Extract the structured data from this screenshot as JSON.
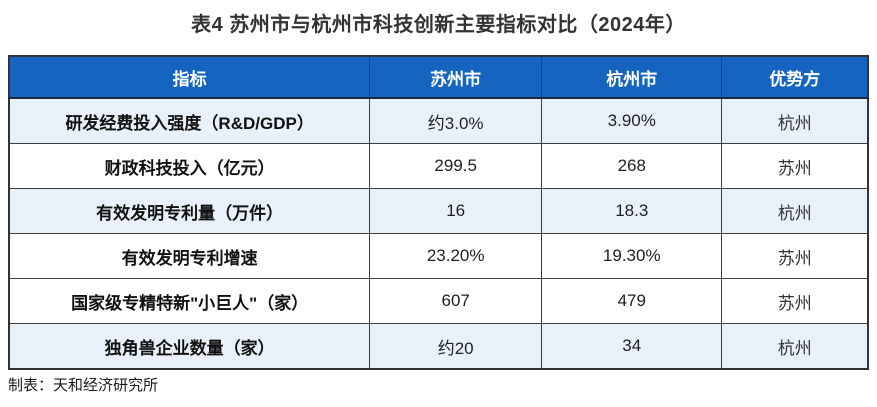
{
  "title": "表4  苏州市与杭州市科技创新主要指标对比（2024年）",
  "table": {
    "columns": [
      "指标",
      "苏州市",
      "杭州市",
      "优势方"
    ],
    "rows": [
      {
        "indicator": "研发经费投入强度（R&D/GDP）",
        "suzhou": "约3.0%",
        "hangzhou": "3.90%",
        "advantage": "杭州"
      },
      {
        "indicator": "财政科技投入（亿元）",
        "suzhou": "299.5",
        "hangzhou": "268",
        "advantage": "苏州"
      },
      {
        "indicator": "有效发明专利量（万件）",
        "suzhou": "16",
        "hangzhou": "18.3",
        "advantage": "杭州"
      },
      {
        "indicator": "有效发明专利增速",
        "suzhou": "23.20%",
        "hangzhou": "19.30%",
        "advantage": "苏州"
      },
      {
        "indicator": "国家级专精特新\"小巨人\"（家）",
        "suzhou": "607",
        "hangzhou": "479",
        "advantage": "苏州"
      },
      {
        "indicator": "独角兽企业数量（家）",
        "suzhou": "约20",
        "hangzhou": "34",
        "advantage": "杭州"
      }
    ]
  },
  "footer": "制表：天和经济研究所",
  "colors": {
    "header_bg": "#1565c0",
    "header_text": "#ffffff",
    "row_shaded_bg": "#e8f1fa",
    "row_plain_bg": "#ffffff",
    "border": "#3d3d3d",
    "title_text": "#333333"
  }
}
